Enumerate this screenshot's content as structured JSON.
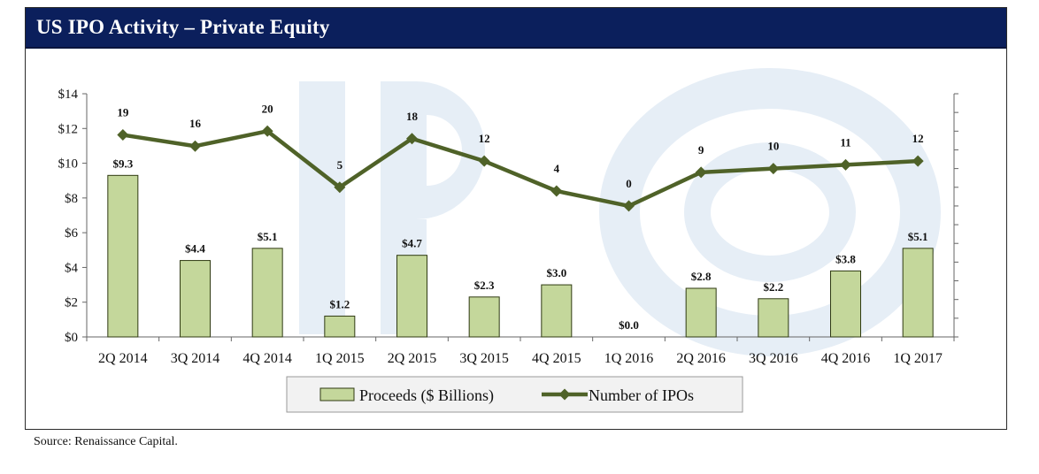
{
  "title": "US IPO Activity – Private Equity",
  "source": "Source: Renaissance Capital.",
  "colors": {
    "title_bg": "#0b1f5c",
    "bar_fill": "#c4d79b",
    "bar_stroke": "#2f3a12",
    "line": "#4f6228",
    "watermark": "#e6eef6"
  },
  "chart_data": {
    "type": "bar",
    "categories": [
      "2Q 2014",
      "3Q 2014",
      "4Q 2014",
      "1Q 2015",
      "2Q 2015",
      "3Q 2015",
      "4Q 2015",
      "1Q 2016",
      "2Q 2016",
      "3Q 2016",
      "4Q 2016",
      "1Q 2017"
    ],
    "series": [
      {
        "name": "Proceeds ($ Billions)",
        "type": "bar",
        "axis": "left",
        "values": [
          9.3,
          4.4,
          5.1,
          1.2,
          4.7,
          2.3,
          3.0,
          0.0,
          2.8,
          2.2,
          3.8,
          5.1
        ],
        "labels": [
          "$9.3",
          "$4.4",
          "$5.1",
          "$1.2",
          "$4.7",
          "$2.3",
          "$3.0",
          "$0.0",
          "$2.8",
          "$2.2",
          "$3.8",
          "$5.1"
        ]
      },
      {
        "name": "Number of IPOs",
        "type": "line",
        "axis": "right",
        "values": [
          19,
          16,
          20,
          5,
          18,
          12,
          4,
          0,
          9,
          10,
          11,
          12
        ],
        "labels": [
          "19",
          "16",
          "20",
          "5",
          "18",
          "12",
          "4",
          "0",
          "9",
          "10",
          "11",
          "12"
        ]
      }
    ],
    "y_left": {
      "ticks": [
        0,
        2,
        4,
        6,
        8,
        10,
        12,
        14
      ],
      "tick_labels": [
        "$0",
        "$2",
        "$4",
        "$6",
        "$8",
        "$10",
        "$12",
        "$14"
      ],
      "range": [
        0,
        14
      ]
    },
    "y_right": {
      "range": [
        -35,
        30
      ],
      "tick_step": 5,
      "labels_shown": false
    },
    "legend": {
      "position": "bottom-center",
      "entries": [
        "Proceeds ($ Billions)",
        "Number of IPOs"
      ]
    },
    "grid": false
  }
}
